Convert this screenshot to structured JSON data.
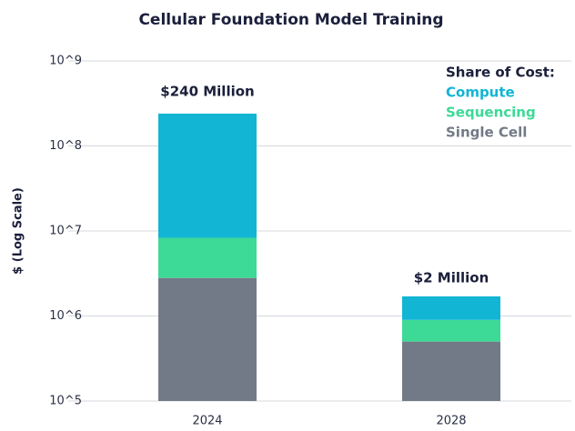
{
  "chart_data": {
    "type": "stacked_bar",
    "title": "Cellular Foundation Model Training",
    "ylabel": "$ (Log Scale)",
    "log_scale": true,
    "categories": [
      "2024",
      "2028"
    ],
    "legend_title": "Share of Cost:",
    "legend_position": "upper right",
    "series": [
      {
        "name": "Compute",
        "color": "#12b5d4",
        "values": [
          231700000,
          800000
        ]
      },
      {
        "name": "Sequencing",
        "color": "#3dd997",
        "values": [
          5500000,
          400000
        ]
      },
      {
        "name": "Single Cell",
        "color": "#737a87",
        "values": [
          2800000,
          500000
        ]
      }
    ],
    "annotations": [
      "$240 Million",
      "$2 Million"
    ],
    "ylim": [
      100000,
      1000000000
    ],
    "yticks": [
      {
        "value": 100000,
        "label": "10^5"
      },
      {
        "value": 1000000,
        "label": "10^6"
      },
      {
        "value": 10000000,
        "label": "10^7"
      },
      {
        "value": 100000000,
        "label": "10^8"
      },
      {
        "value": 1000000000,
        "label": "10^9"
      }
    ],
    "grid": true
  }
}
